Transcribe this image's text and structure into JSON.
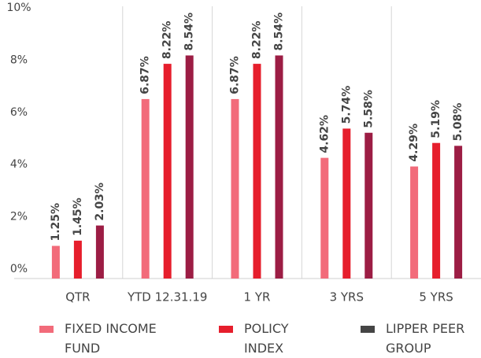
{
  "chart_data": {
    "type": "bar",
    "categories": [
      "QTR",
      "YTD 12.31.19",
      "1 YR",
      "3 YRS",
      "5 YRS"
    ],
    "series": [
      {
        "name": "FIXED INCOME FUND",
        "color": "#f26b7a",
        "legend_color": "#f26b7a",
        "values": [
          1.25,
          6.87,
          6.87,
          4.62,
          4.29
        ],
        "value_labels": [
          "1.25%",
          "6.87%",
          "6.87%",
          "4.62%",
          "4.29%"
        ]
      },
      {
        "name": "POLICY INDEX",
        "color": "#e61e2c",
        "legend_color": "#e61e2c",
        "values": [
          1.45,
          8.22,
          8.22,
          5.74,
          5.19
        ],
        "value_labels": [
          "1.45%",
          "8.22%",
          "8.22%",
          "5.74%",
          "5.19%"
        ]
      },
      {
        "name": "LIPPER PEER GROUP",
        "color": "#9c1d44",
        "legend_color": "#454545",
        "values": [
          2.03,
          8.54,
          8.54,
          5.58,
          5.08
        ],
        "value_labels": [
          "2.03%",
          "8.54%",
          "8.54%",
          "5.58%",
          "5.08%"
        ]
      }
    ],
    "ylim": [
      0,
      10
    ],
    "yticks": [
      {
        "value": 0,
        "label": "0%"
      },
      {
        "value": 2,
        "label": "2%"
      },
      {
        "value": 4,
        "label": "4%"
      },
      {
        "value": 6,
        "label": "6%"
      },
      {
        "value": 8,
        "label": "8%"
      },
      {
        "value": 10,
        "label": "10%"
      }
    ],
    "grid": false
  }
}
